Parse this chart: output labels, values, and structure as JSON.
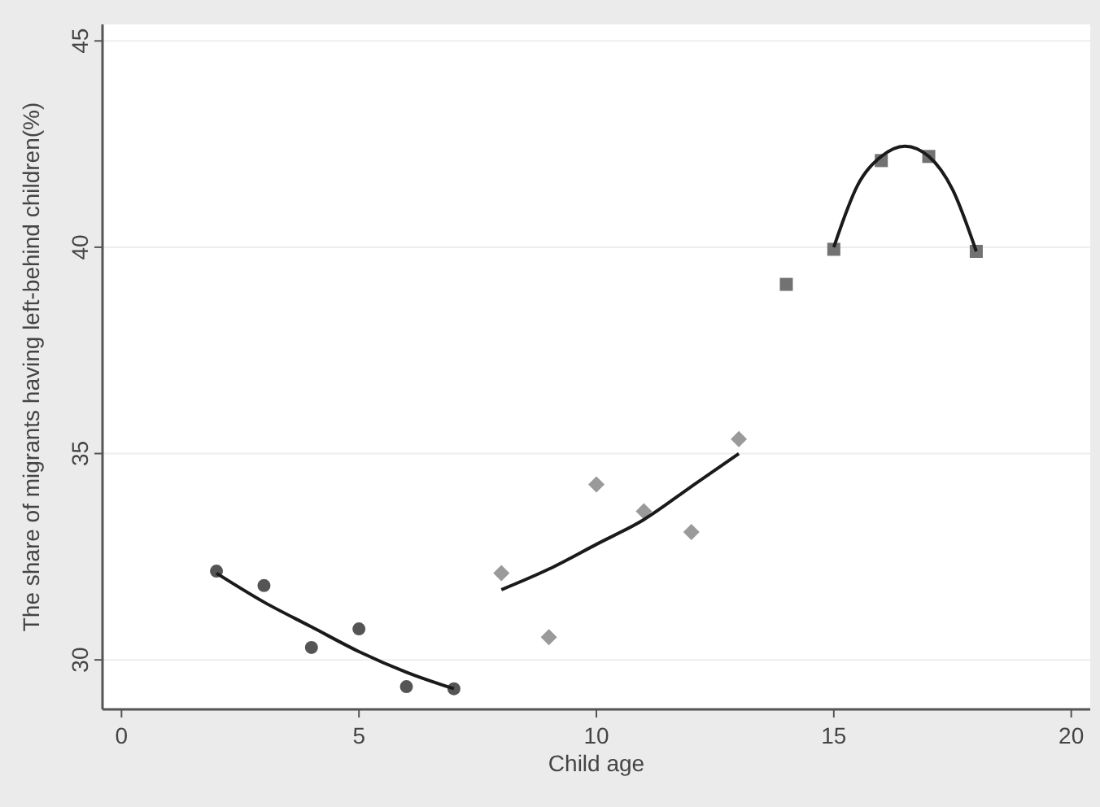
{
  "chart_data": {
    "type": "scatter",
    "xlabel": "Child age",
    "ylabel": "The share of migrants having left-behind children(%)",
    "xlim": [
      -0.4,
      20.4
    ],
    "xticks": [
      0,
      5,
      10,
      15,
      20
    ],
    "ylim": [
      28.8,
      45.4
    ],
    "yticks": [
      30,
      35,
      40,
      45
    ],
    "grid": "y",
    "series": [
      {
        "marker": "circle",
        "color": "#555555",
        "x": [
          2,
          3,
          4,
          5,
          6,
          7
        ],
        "values": [
          32.15,
          31.8,
          30.3,
          30.75,
          29.35,
          29.3
        ]
      },
      {
        "marker": "diamond",
        "color": "#9a9a9a",
        "x": [
          8,
          9,
          10,
          11,
          12,
          13
        ],
        "values": [
          32.1,
          30.55,
          34.25,
          33.6,
          33.1,
          35.35
        ]
      },
      {
        "marker": "square",
        "color": "#727272",
        "x": [
          14,
          15,
          16,
          17,
          18
        ],
        "values": [
          39.1,
          39.95,
          42.1,
          42.2,
          39.9
        ]
      },
      {
        "type": "line",
        "marker": "none",
        "color": "#1a1a1a",
        "x": [
          2,
          3,
          4,
          5,
          6,
          7
        ],
        "values": [
          32.1,
          31.4,
          30.8,
          30.2,
          29.7,
          29.3
        ]
      },
      {
        "type": "line",
        "marker": "none",
        "color": "#1a1a1a",
        "x": [
          8,
          9,
          10,
          11,
          12,
          13
        ],
        "values": [
          31.7,
          32.2,
          32.8,
          33.4,
          34.2,
          35.0
        ]
      },
      {
        "type": "line",
        "marker": "none",
        "color": "#1a1a1a",
        "x": [
          15,
          15.5,
          16,
          16.5,
          17,
          17.5,
          18
        ],
        "values": [
          40.0,
          41.5,
          42.2,
          42.45,
          42.2,
          41.4,
          39.9
        ]
      }
    ]
  }
}
